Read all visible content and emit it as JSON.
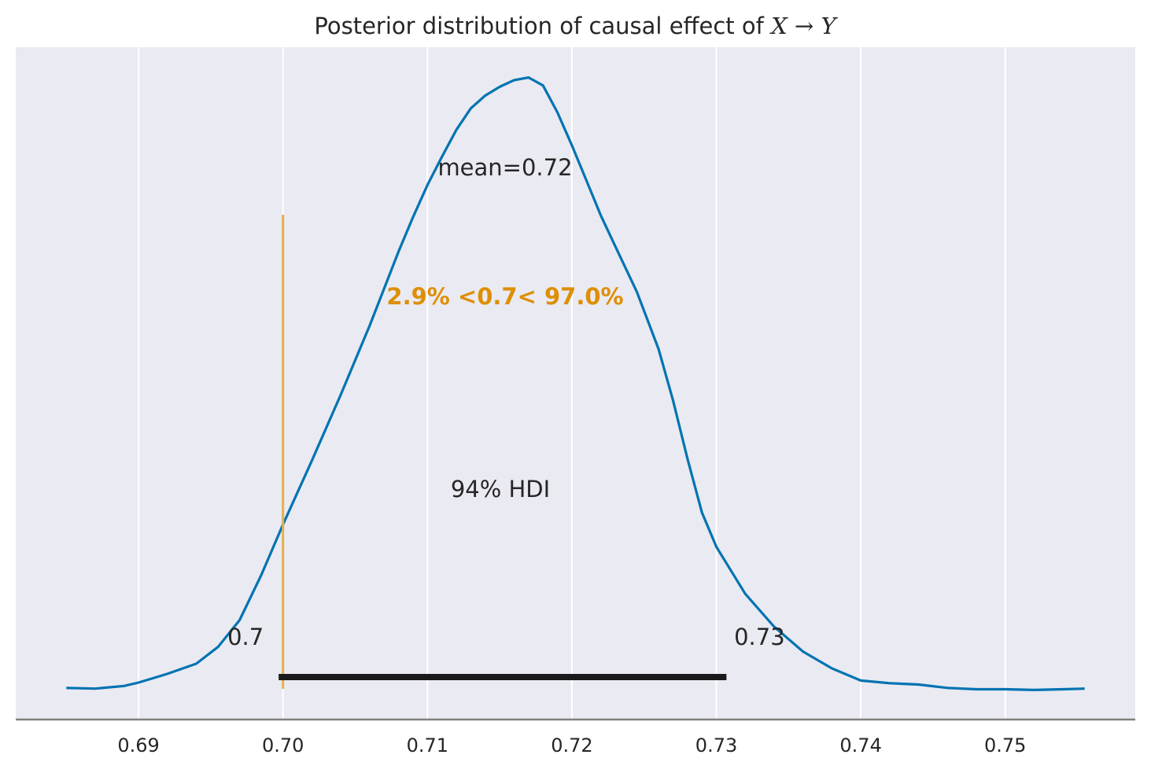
{
  "chart_data": {
    "type": "line",
    "title": "Posterior distribution of causal effect of ",
    "title_math": "X → Y",
    "xlabel": "",
    "ylabel": "",
    "xlim": [
      0.6815,
      0.759
    ],
    "ylim": [
      0,
      1.0
    ],
    "grid": true,
    "x_ticks": [
      0.69,
      0.7,
      0.71,
      0.72,
      0.73,
      0.74,
      0.75
    ],
    "x_tick_labels": [
      "0.69",
      "0.70",
      "0.71",
      "0.72",
      "0.73",
      "0.74",
      "0.75"
    ],
    "series": [
      {
        "values_xy": [
          [
            0.685,
            0.047
          ],
          [
            0.687,
            0.046
          ],
          [
            0.689,
            0.05
          ],
          [
            0.69,
            0.055
          ],
          [
            0.692,
            0.068
          ],
          [
            0.694,
            0.083
          ],
          [
            0.6955,
            0.108
          ],
          [
            0.697,
            0.148
          ],
          [
            0.6985,
            0.215
          ],
          [
            0.7,
            0.29
          ],
          [
            0.702,
            0.385
          ],
          [
            0.704,
            0.483
          ],
          [
            0.706,
            0.586
          ],
          [
            0.708,
            0.696
          ],
          [
            0.709,
            0.747
          ],
          [
            0.71,
            0.795
          ],
          [
            0.711,
            0.837
          ],
          [
            0.712,
            0.877
          ],
          [
            0.713,
            0.909
          ],
          [
            0.714,
            0.928
          ],
          [
            0.715,
            0.941
          ],
          [
            0.716,
            0.951
          ],
          [
            0.717,
            0.955
          ],
          [
            0.718,
            0.943
          ],
          [
            0.719,
            0.903
          ],
          [
            0.72,
            0.854
          ],
          [
            0.721,
            0.802
          ],
          [
            0.722,
            0.75
          ],
          [
            0.723,
            0.704
          ],
          [
            0.7245,
            0.636
          ],
          [
            0.726,
            0.551
          ],
          [
            0.727,
            0.475
          ],
          [
            0.728,
            0.388
          ],
          [
            0.729,
            0.308
          ],
          [
            0.73,
            0.257
          ],
          [
            0.732,
            0.187
          ],
          [
            0.734,
            0.138
          ],
          [
            0.736,
            0.101
          ],
          [
            0.738,
            0.076
          ],
          [
            0.74,
            0.058
          ],
          [
            0.742,
            0.054
          ],
          [
            0.744,
            0.052
          ],
          [
            0.746,
            0.047
          ],
          [
            0.748,
            0.045
          ],
          [
            0.75,
            0.045
          ],
          [
            0.752,
            0.044
          ],
          [
            0.754,
            0.045
          ],
          [
            0.7555,
            0.046
          ]
        ],
        "color": "#0173b2"
      }
    ],
    "hdi": {
      "low": 0.7,
      "high": 0.73,
      "low_x": 0.6997,
      "high_x": 0.7307,
      "low_label": "0.7",
      "high_label": "0.73",
      "label": "94% HDI",
      "color": "#1a1a1a"
    },
    "mean_label": "mean=0.72",
    "ref_val": {
      "x": 0.7,
      "label": "2.9% <0.7< 97.0%",
      "color": "#de8f05",
      "line_color": "#e6b04a"
    },
    "colors": {
      "axes_bg": "#eaeaf2",
      "grid": "#ffffff",
      "spine": "#808080",
      "text": "#262626"
    }
  }
}
